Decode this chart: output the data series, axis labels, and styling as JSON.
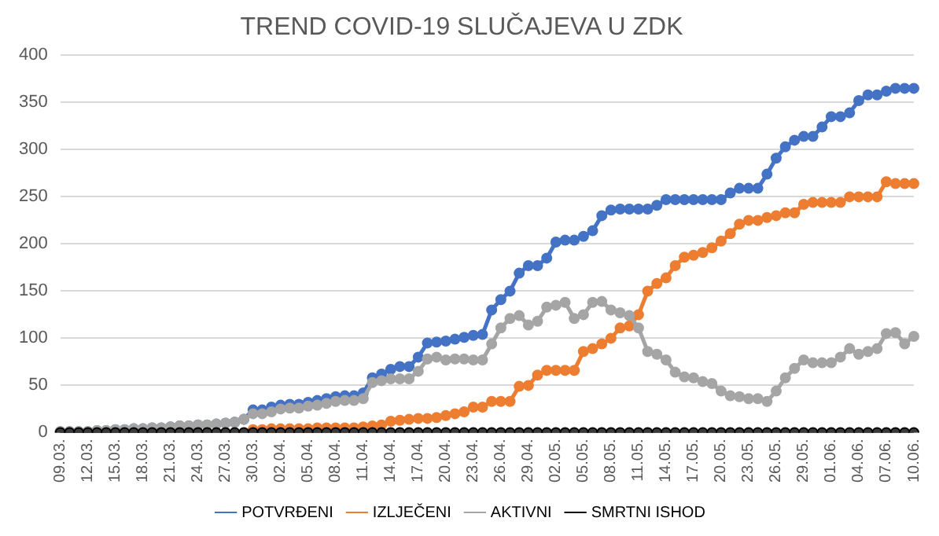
{
  "chart_data": {
    "type": "line",
    "title": "TREND COVID-19 SLUČAJEVA U ZDK",
    "categories": [
      "09.03.",
      null,
      null,
      "12.03.",
      null,
      null,
      "15.03.",
      null,
      null,
      "18.03.",
      null,
      null,
      "21.03.",
      null,
      null,
      "24.03.",
      null,
      null,
      "27.03.",
      null,
      null,
      "30.03.",
      null,
      null,
      "02.04.",
      null,
      null,
      "05.04.",
      null,
      null,
      "08.04.",
      null,
      null,
      "11.04.",
      null,
      null,
      "14.04.",
      null,
      null,
      "17.04.",
      null,
      null,
      "20.04.",
      null,
      null,
      "23.04.",
      null,
      null,
      "26.04.",
      null,
      null,
      "29.04.",
      null,
      null,
      "02.05.",
      null,
      null,
      "05.05.",
      null,
      null,
      "08.05.",
      null,
      null,
      "11.05.",
      null,
      null,
      "14.05.",
      null,
      null,
      "17.05.",
      null,
      null,
      "20.05.",
      null,
      null,
      "23.05.",
      null,
      null,
      "26.05.",
      null,
      null,
      "29.05.",
      null,
      null,
      "01.06.",
      null,
      null,
      "04.06.",
      null,
      null,
      "07.06.",
      null,
      null,
      "10.06."
    ],
    "series": [
      {
        "name": "POTVRĐENI",
        "color": "#4472c4",
        "values": [
          1,
          1,
          1,
          1,
          2,
          2,
          3,
          3,
          4,
          4,
          5,
          5,
          6,
          7,
          7,
          8,
          8,
          9,
          10,
          11,
          14,
          24,
          24,
          27,
          29,
          30,
          30,
          32,
          34,
          36,
          38,
          39,
          39,
          42,
          58,
          62,
          67,
          70,
          70,
          80,
          95,
          96,
          97,
          99,
          101,
          103,
          104,
          130,
          141,
          150,
          169,
          177,
          177,
          185,
          202,
          204,
          204,
          208,
          214,
          230,
          236,
          237,
          237,
          237,
          237,
          241,
          247,
          247,
          247,
          247,
          247,
          247,
          247,
          254,
          259,
          259,
          259,
          274,
          291,
          303,
          310,
          314,
          314,
          324,
          335,
          335,
          339,
          352,
          358,
          358,
          362,
          365,
          365,
          365
        ]
      },
      {
        "name": "IZLJEČENI",
        "color": "#ed7d31",
        "values": [
          null,
          null,
          null,
          null,
          null,
          null,
          null,
          null,
          null,
          null,
          null,
          null,
          null,
          null,
          null,
          null,
          null,
          null,
          null,
          null,
          null,
          3,
          3,
          4,
          4,
          4,
          4,
          4,
          5,
          5,
          5,
          5,
          5,
          6,
          7,
          8,
          12,
          13,
          14,
          15,
          15,
          16,
          18,
          20,
          22,
          27,
          27,
          33,
          33,
          33,
          49,
          50,
          61,
          66,
          66,
          66,
          66,
          86,
          89,
          94,
          100,
          111,
          113,
          125,
          150,
          158,
          164,
          177,
          186,
          188,
          191,
          196,
          203,
          211,
          221,
          225,
          225,
          228,
          230,
          233,
          233,
          242,
          244,
          244,
          244,
          244,
          250,
          250,
          250,
          250,
          266,
          264,
          264,
          264
        ]
      },
      {
        "name": "AKTIVNI",
        "color": "#a5a5a5",
        "values": [
          1,
          1,
          1,
          1,
          2,
          2,
          3,
          3,
          4,
          4,
          5,
          5,
          6,
          7,
          7,
          8,
          8,
          9,
          10,
          11,
          14,
          20,
          20,
          22,
          25,
          26,
          26,
          28,
          29,
          31,
          33,
          34,
          34,
          36,
          53,
          55,
          57,
          57,
          57,
          65,
          78,
          80,
          77,
          78,
          78,
          77,
          77,
          94,
          111,
          121,
          124,
          114,
          118,
          133,
          135,
          138,
          121,
          125,
          138,
          139,
          130,
          127,
          124,
          111,
          86,
          83,
          77,
          64,
          59,
          58,
          54,
          52,
          44,
          39,
          38,
          36,
          36,
          33,
          44,
          58,
          68,
          77,
          74,
          74,
          74,
          80,
          89,
          83,
          86,
          89,
          105,
          106,
          94,
          102
        ]
      },
      {
        "name": "SMRTNI ISHOD",
        "color": "#000000",
        "values": [
          0,
          0,
          0,
          0,
          0,
          0,
          0,
          0,
          0,
          0,
          0,
          0,
          0,
          0,
          0,
          0,
          0,
          0,
          0,
          0,
          0,
          0,
          0,
          0,
          0,
          0,
          0,
          0,
          0,
          0,
          0,
          0,
          0,
          0,
          0,
          0,
          0,
          0,
          0,
          0,
          0,
          0,
          0,
          0,
          0,
          0,
          0,
          0,
          0,
          0,
          0,
          0,
          0,
          0,
          0,
          0,
          0,
          0,
          0,
          0,
          0,
          0,
          0,
          0,
          0,
          0,
          0,
          0,
          0,
          0,
          0,
          0,
          0,
          0,
          0,
          0,
          0,
          0,
          0,
          0,
          0,
          0,
          0,
          0,
          0,
          0,
          0,
          0,
          0,
          0,
          0,
          0,
          0,
          0
        ]
      }
    ],
    "ylim": [
      0,
      400
    ],
    "yticks": [
      0,
      50,
      100,
      150,
      200,
      250,
      300,
      350,
      400
    ],
    "grid": "y",
    "legend": "bottom",
    "marker": "circle",
    "line_style": "solid"
  }
}
